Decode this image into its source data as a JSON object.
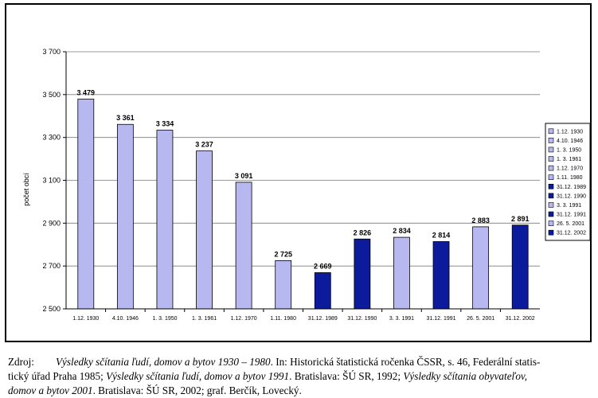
{
  "chart_data": {
    "type": "bar",
    "ylabel": "počet obcí",
    "ylim": [
      2500,
      3700
    ],
    "yticks": [
      2500,
      2700,
      2900,
      3100,
      3300,
      3500,
      3700
    ],
    "ytick_labels": [
      "2 500",
      "2 700",
      "2 900",
      "3 100",
      "3 300",
      "3 500",
      "3 700"
    ],
    "categories": [
      "1.12. 1930",
      "4.10. 1946",
      "1. 3. 1950",
      "1. 3. 1961",
      "1.12. 1970",
      "1.11. 1980",
      "31.12. 1989",
      "31.12. 1990",
      "3. 3. 1991",
      "31.12. 1991",
      "26. 5. 2001",
      "31.12. 2002"
    ],
    "values": [
      3479,
      3361,
      3334,
      3237,
      3091,
      2725,
      2669,
      2826,
      2834,
      2814,
      2883,
      2891
    ],
    "value_labels": [
      "3 479",
      "3 361",
      "3 334",
      "3 237",
      "3 091",
      "2 725",
      "2 669",
      "2 826",
      "2 834",
      "2 814",
      "2 883",
      "2 891"
    ],
    "bar_colors": [
      "#b8b8f0",
      "#b8b8f0",
      "#b8b8f0",
      "#b8b8f0",
      "#b8b8f0",
      "#b8b8f0",
      "#0c1a9c",
      "#0c1a9c",
      "#b8b8f0",
      "#0c1a9c",
      "#b8b8f0",
      "#0c1a9c"
    ],
    "legend": {
      "placement": "right",
      "entries": [
        "1.12. 1930",
        "4.10. 1946",
        "1. 3. 1950",
        "1. 3. 1961",
        "1.12. 1970",
        "1.11. 1980",
        "31.12. 1989",
        "31.12. 1990",
        "3. 3. 1991",
        "31.12. 1991",
        "26. 5. 2001",
        "31.12. 2002"
      ]
    },
    "grid": true
  },
  "source": {
    "label": "Zdroj:",
    "line1_italic": "Výsledky sčítania ľudí, domov a bytov 1930 – 1980",
    "line1_rest": ". In: Historická štatistická ročenka ČSSR, s. 46, Federální statis-",
    "line2_start": "tický úřad Praha 1985; ",
    "line2_italic": "Výsledky sčítania ľudí, domov a bytov 1991",
    "line2_mid": ". Bratislava: ŠÚ SR, 1992; ",
    "line2_italic2": "Výsledky sčítania obyvateľov,",
    "line3_italic": "domov a bytov 2001",
    "line3_rest": ". Bratislava: ŠÚ SR, 2002;  graf. Berčík, Lovecký."
  }
}
